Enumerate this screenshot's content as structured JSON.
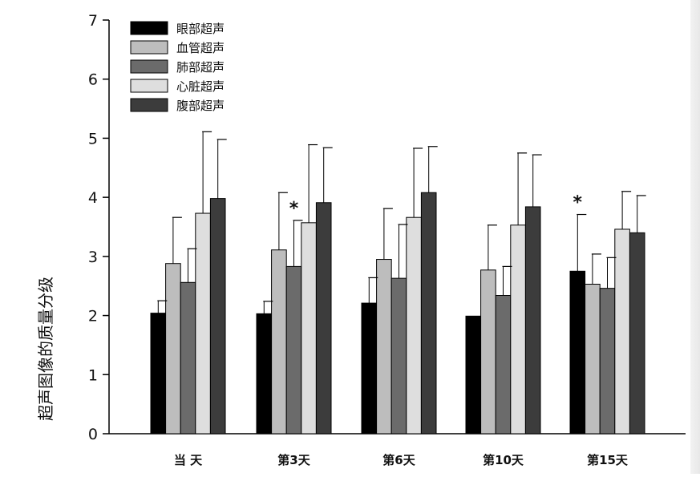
{
  "chart_data": {
    "type": "bar",
    "title": "",
    "xlabel": "",
    "ylabel": "超声图像的质量分级",
    "ylim": [
      0,
      7
    ],
    "yticks": [
      "0",
      "1",
      "2",
      "3",
      "4",
      "5",
      "6",
      "7"
    ],
    "categories": [
      "当 天",
      "第3天",
      "第6天",
      "第10天",
      "第15天"
    ],
    "legend_position": "top-left",
    "grid": false,
    "series": [
      {
        "name": "眼部超声",
        "color": "#000000",
        "values": [
          2.04,
          2.03,
          2.21,
          1.99,
          2.75
        ],
        "errors": [
          0.21,
          0.21,
          0.43,
          0.0,
          0.96
        ]
      },
      {
        "name": "血管超声",
        "color": "#bdbdbd",
        "values": [
          2.88,
          3.11,
          2.95,
          2.77,
          2.53
        ],
        "errors": [
          0.78,
          0.97,
          0.86,
          0.76,
          0.51
        ]
      },
      {
        "name": "肺部超声",
        "color": "#6b6b6b",
        "values": [
          2.56,
          2.83,
          2.63,
          2.34,
          2.46
        ],
        "errors": [
          0.57,
          0.78,
          0.91,
          0.49,
          0.52
        ]
      },
      {
        "name": "心脏超声",
        "color": "#dedede",
        "values": [
          3.73,
          3.57,
          3.66,
          3.53,
          3.46
        ],
        "errors": [
          1.38,
          1.32,
          1.17,
          1.22,
          0.64
        ]
      },
      {
        "name": "腹部超声",
        "color": "#3c3c3c",
        "values": [
          3.98,
          3.91,
          4.08,
          3.84,
          3.4
        ],
        "errors": [
          1.0,
          0.93,
          0.78,
          0.88,
          0.63
        ]
      }
    ],
    "annotations": [
      {
        "text": "*",
        "category": "第3天",
        "series": "肺部超声"
      },
      {
        "text": "*",
        "category": "第15天",
        "series": "眼部超声"
      }
    ]
  }
}
